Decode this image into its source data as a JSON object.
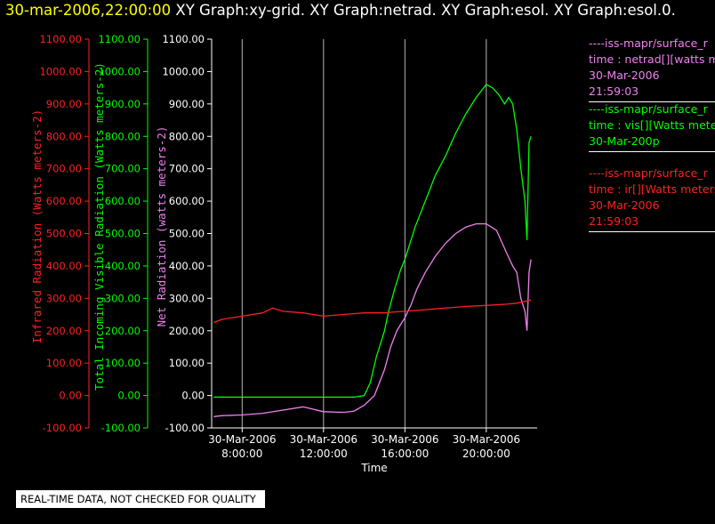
{
  "header": {
    "timestamp": "30-mar-2006,22:00:00",
    "graphs": "XY Graph:xy-grid.  XY Graph:netrad.  XY Graph:esol.  XY Graph:esol.0."
  },
  "footer": {
    "notice": "REAL-TIME DATA, NOT CHECKED FOR QUALITY"
  },
  "colors": {
    "ir": "#ff2020",
    "vis": "#00ff00",
    "net": "#ee82ee",
    "axis_white": "#ffffff",
    "grid": "#d9d9d9"
  },
  "legend": [
    {
      "color": "#ee82ee",
      "lines": [
        "----iss-mapr/surface_r",
        "time : netrad[][watts m",
        "30-Mar-2006",
        "21:59:03"
      ]
    },
    {
      "color": "#00ff00",
      "lines": [
        "----iss-mapr/surface_r",
        "time : vis[][Watts mete",
        "30-Mar-200p"
      ]
    },
    {
      "color": "#ff2020",
      "lines": [
        "----iss-mapr/surface_r",
        "time : ir[][Watts meters",
        "30-Mar-2006",
        "21:59:03"
      ]
    }
  ],
  "chart_data": {
    "type": "line",
    "xlabel": "Time",
    "x_ticks": [
      {
        "date": "30-Mar-2006",
        "time": "8:00:00",
        "hour": 8
      },
      {
        "date": "30-Mar-2006",
        "time": "12:00:00",
        "hour": 12
      },
      {
        "date": "30-Mar-2006",
        "time": "16:00:00",
        "hour": 16
      },
      {
        "date": "30-Mar-2006",
        "time": "20:00:00",
        "hour": 20
      }
    ],
    "xlim_hours": [
      6.5,
      22.5
    ],
    "ylim": [
      -100,
      1100
    ],
    "y_ticks": [
      "1100.00",
      "1000.00",
      "900.00",
      "800.00",
      "700.00",
      "600.00",
      "500.00",
      "400.00",
      "300.00",
      "200.00",
      "100.00",
      "0.00",
      "-100.00"
    ],
    "y_axes": [
      {
        "label": "Infrared Radiation (Watts meters-2)",
        "color": "#ff2020"
      },
      {
        "label": "Total Incoming Visible Radiation (Watts meters-2)",
        "color": "#00ff00"
      },
      {
        "label": "Net Radiation (watts meters-2)",
        "color": "#ee82ee"
      }
    ],
    "grid_x": true,
    "series": [
      {
        "name": "netrad",
        "color": "#ee82ee",
        "x": [
          6.6,
          7,
          8,
          9,
          10,
          11,
          12,
          13,
          13.5,
          14,
          14.5,
          15,
          15.3,
          15.6,
          15.8,
          16,
          16.3,
          16.6,
          17,
          17.5,
          18,
          18.5,
          19,
          19.5,
          20,
          20.5,
          21,
          21.3,
          21.5,
          21.7,
          21.9,
          22.0,
          22.1,
          22.2
        ],
        "y": [
          -65,
          -62,
          -60,
          -55,
          -45,
          -35,
          -50,
          -52,
          -48,
          -30,
          0,
          80,
          150,
          200,
          220,
          240,
          280,
          330,
          380,
          430,
          470,
          500,
          520,
          530,
          530,
          510,
          440,
          400,
          380,
          300,
          260,
          200,
          380,
          420
        ]
      },
      {
        "name": "vis",
        "color": "#00ff00",
        "x": [
          6.6,
          7,
          8,
          9,
          10,
          11,
          12,
          13,
          13.5,
          14,
          14.3,
          14.6,
          15,
          15.2,
          15.5,
          15.8,
          16,
          16.5,
          17,
          17.5,
          18,
          18.5,
          19,
          19.5,
          20,
          20.3,
          20.6,
          20.9,
          21.1,
          21.3,
          21.5,
          21.7,
          21.9,
          22.0,
          22.1,
          22.2
        ],
        "y": [
          -5,
          -5,
          -5,
          -5,
          -5,
          -5,
          -5,
          -5,
          -5,
          0,
          40,
          120,
          200,
          260,
          330,
          390,
          420,
          520,
          600,
          680,
          740,
          810,
          870,
          920,
          960,
          950,
          930,
          900,
          920,
          900,
          820,
          700,
          600,
          480,
          780,
          800
        ]
      },
      {
        "name": "ir",
        "color": "#ff2020",
        "x": [
          6.6,
          7,
          8,
          9,
          9.5,
          10,
          11,
          12,
          13,
          14,
          15,
          15.5,
          16,
          17,
          18,
          19,
          20,
          21,
          21.5,
          22.2
        ],
        "y": [
          225,
          235,
          245,
          255,
          270,
          260,
          255,
          245,
          250,
          255,
          255,
          258,
          260,
          265,
          270,
          275,
          278,
          282,
          285,
          295
        ]
      }
    ]
  }
}
